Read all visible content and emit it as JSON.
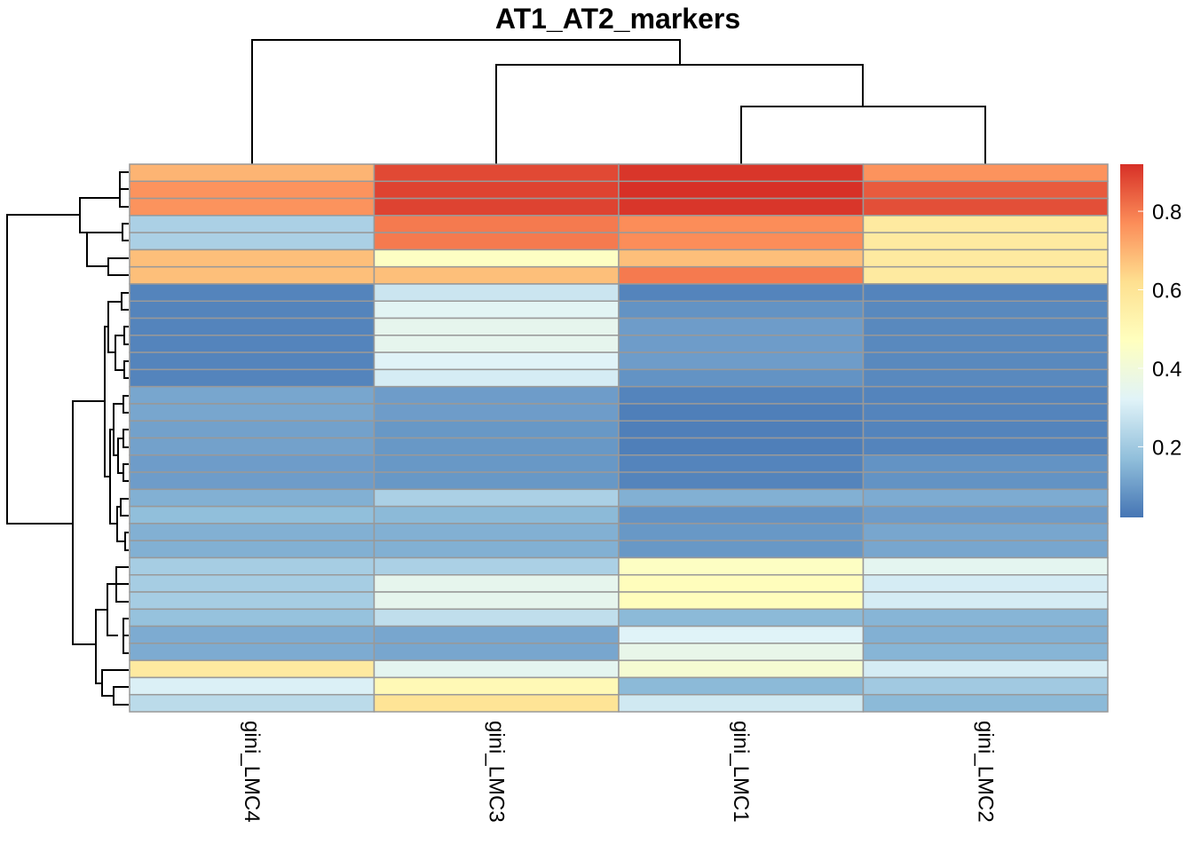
{
  "chart_data": {
    "type": "heatmap",
    "title": "AT1_AT2_markers",
    "columns": [
      "gini_LMC4",
      "gini_LMC3",
      "gini_LMC1",
      "gini_LMC2"
    ],
    "rows": 32,
    "values": [
      [
        0.7,
        0.88,
        0.91,
        0.76
      ],
      [
        0.76,
        0.89,
        0.92,
        0.85
      ],
      [
        0.76,
        0.89,
        0.91,
        0.87
      ],
      [
        0.22,
        0.8,
        0.77,
        0.57
      ],
      [
        0.22,
        0.8,
        0.77,
        0.57
      ],
      [
        0.68,
        0.46,
        0.68,
        0.57
      ],
      [
        0.68,
        0.68,
        0.8,
        0.57
      ],
      [
        0.05,
        0.28,
        0.05,
        0.05
      ],
      [
        0.05,
        0.33,
        0.08,
        0.06
      ],
      [
        0.05,
        0.35,
        0.1,
        0.06
      ],
      [
        0.05,
        0.35,
        0.1,
        0.06
      ],
      [
        0.05,
        0.32,
        0.1,
        0.06
      ],
      [
        0.05,
        0.3,
        0.08,
        0.06
      ],
      [
        0.12,
        0.1,
        0.05,
        0.05
      ],
      [
        0.12,
        0.1,
        0.04,
        0.05
      ],
      [
        0.11,
        0.09,
        0.04,
        0.05
      ],
      [
        0.11,
        0.09,
        0.04,
        0.05
      ],
      [
        0.1,
        0.09,
        0.05,
        0.08
      ],
      [
        0.1,
        0.09,
        0.05,
        0.08
      ],
      [
        0.14,
        0.22,
        0.14,
        0.13
      ],
      [
        0.17,
        0.16,
        0.08,
        0.1
      ],
      [
        0.14,
        0.14,
        0.09,
        0.12
      ],
      [
        0.14,
        0.14,
        0.09,
        0.12
      ],
      [
        0.21,
        0.22,
        0.46,
        0.34
      ],
      [
        0.21,
        0.35,
        0.48,
        0.3
      ],
      [
        0.21,
        0.35,
        0.48,
        0.3
      ],
      [
        0.18,
        0.26,
        0.16,
        0.15
      ],
      [
        0.13,
        0.12,
        0.32,
        0.14
      ],
      [
        0.13,
        0.12,
        0.36,
        0.15
      ],
      [
        0.57,
        0.34,
        0.42,
        0.3
      ],
      [
        0.31,
        0.5,
        0.16,
        0.2
      ],
      [
        0.25,
        0.6,
        0.29,
        0.16
      ]
    ],
    "legend": {
      "min": 0.02,
      "max": 0.92,
      "ticks": [
        0.2,
        0.4,
        0.6,
        0.8
      ],
      "tick_labels": [
        "0.2",
        "0.4",
        "0.6",
        "0.8"
      ],
      "placement": "right"
    },
    "colors": [
      "#4575b4",
      "#91bfdb",
      "#e0f3f8",
      "#ffffbf",
      "#fee090",
      "#fc8d59",
      "#d73027"
    ],
    "grid": true,
    "cell_border_color": "#999999"
  }
}
